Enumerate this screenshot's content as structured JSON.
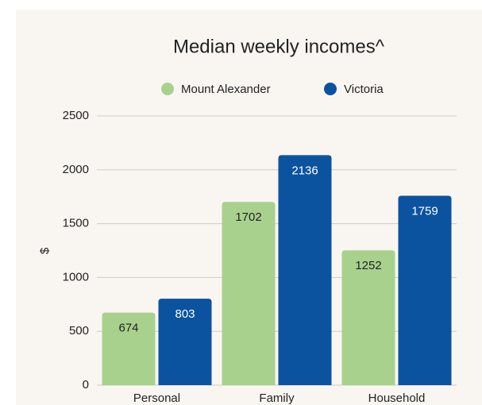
{
  "chart_data": {
    "type": "bar",
    "title": "Median weekly incomes^",
    "y_label": "$",
    "categories": [
      "Personal",
      "Family",
      "Household"
    ],
    "series": [
      {
        "name": "Mount Alexander",
        "color": "#a9d18e",
        "values": [
          674,
          1702,
          1252
        ]
      },
      {
        "name": "Victoria",
        "color": "#0b539f",
        "values": [
          803,
          2136,
          1759
        ]
      }
    ],
    "ylim": [
      0,
      2500
    ],
    "yticks": [
      0,
      500,
      1000,
      1500,
      2000,
      2500
    ],
    "grid": true,
    "legend": "top"
  }
}
